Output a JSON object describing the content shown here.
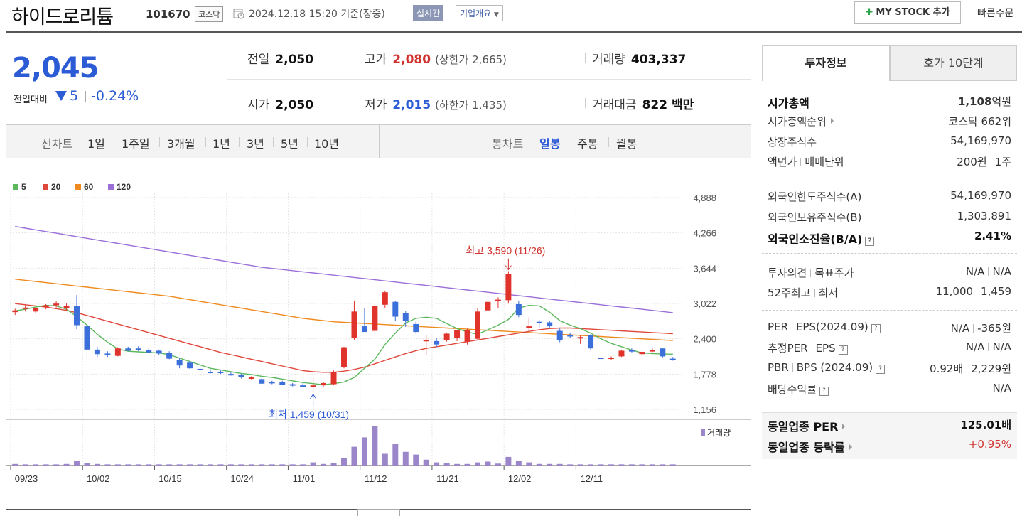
{
  "header": {
    "stock_name": "하이드로리튬",
    "stock_code": "101670",
    "market": "코스닥",
    "date": "2024.12.18 15:20 기준(장중)",
    "realtime_badge": "실시간",
    "company_overview": "기업개요",
    "my_stock_button": "MY STOCK 추가",
    "quick_order": "빠른주문"
  },
  "price": {
    "current": "2,045",
    "change_label": "전일대비",
    "change": "5",
    "change_pct": "-0.24%",
    "direction_color": "#2c5bd6"
  },
  "quote": {
    "prev_close_label": "전일",
    "prev_close": "2,050",
    "high_label": "고가",
    "high": "2,080",
    "upper_limit": "(상한가 2,665)",
    "volume_label": "거래량",
    "volume": "403,337",
    "open_label": "시가",
    "open": "2,050",
    "low_label": "저가",
    "low": "2,015",
    "lower_limit": "(하한가 1,435)",
    "amount_label": "거래대금",
    "amount": "822 백만"
  },
  "period_bar": {
    "line_chart_label": "선차트",
    "line_periods": [
      "1일",
      "1주일",
      "3개월",
      "1년",
      "3년",
      "5년",
      "10년"
    ],
    "candle_chart_label": "봉차트",
    "candle_periods": [
      "일봉",
      "주봉",
      "월봉"
    ],
    "candle_selected": "일봉"
  },
  "chart_data": {
    "type": "candlestick",
    "legend": [
      {
        "name": "5",
        "color": "#5cb85c"
      },
      {
        "name": "20",
        "color": "#e0473c"
      },
      {
        "name": "60",
        "color": "#ef8a1e"
      },
      {
        "name": "120",
        "color": "#9b6fd8"
      }
    ],
    "y_ticks": [
      "4,888",
      "4,266",
      "3,644",
      "3,022",
      "2,400",
      "1,778",
      "1,156"
    ],
    "y_range": [
      1156,
      4888
    ],
    "x_ticks": [
      {
        "label": "09/23",
        "index": 0
      },
      {
        "label": "10/02",
        "index": 7
      },
      {
        "label": "10/15",
        "index": 14
      },
      {
        "label": "10/24",
        "index": 21
      },
      {
        "label": "11/01",
        "index": 27
      },
      {
        "label": "11/12",
        "index": 34
      },
      {
        "label": "11/21",
        "index": 41
      },
      {
        "label": "12/02",
        "index": 48
      },
      {
        "label": "12/11",
        "index": 55
      }
    ],
    "high_annotation": "최고 3,590 (11/26)",
    "low_annotation": "최저 1,459 (10/31)",
    "volume_label": "거래량",
    "candles": [
      {
        "o": 2870,
        "h": 2930,
        "l": 2820,
        "c": 2900
      },
      {
        "o": 2930,
        "h": 2990,
        "l": 2880,
        "c": 2950
      },
      {
        "o": 2880,
        "h": 2960,
        "l": 2850,
        "c": 2940
      },
      {
        "o": 2960,
        "h": 3010,
        "l": 2920,
        "c": 2990
      },
      {
        "o": 2990,
        "h": 3060,
        "l": 2950,
        "c": 3020
      },
      {
        "o": 2940,
        "h": 3020,
        "l": 2900,
        "c": 2980
      },
      {
        "o": 2980,
        "h": 3170,
        "l": 2570,
        "c": 2640
      },
      {
        "o": 2620,
        "h": 2640,
        "l": 2030,
        "c": 2210
      },
      {
        "o": 2210,
        "h": 2260,
        "l": 2080,
        "c": 2130
      },
      {
        "o": 2140,
        "h": 2180,
        "l": 2080,
        "c": 2120
      },
      {
        "o": 2100,
        "h": 2250,
        "l": 2090,
        "c": 2230
      },
      {
        "o": 2230,
        "h": 2260,
        "l": 2180,
        "c": 2190
      },
      {
        "o": 2230,
        "h": 2270,
        "l": 2180,
        "c": 2200
      },
      {
        "o": 2200,
        "h": 2230,
        "l": 2150,
        "c": 2160
      },
      {
        "o": 2190,
        "h": 2210,
        "l": 2120,
        "c": 2140
      },
      {
        "o": 2150,
        "h": 2180,
        "l": 2040,
        "c": 2050
      },
      {
        "o": 2030,
        "h": 2060,
        "l": 1880,
        "c": 1930
      },
      {
        "o": 1980,
        "h": 2010,
        "l": 1870,
        "c": 1880
      },
      {
        "o": 1870,
        "h": 1890,
        "l": 1820,
        "c": 1860
      },
      {
        "o": 1820,
        "h": 1860,
        "l": 1790,
        "c": 1800
      },
      {
        "o": 1820,
        "h": 1840,
        "l": 1780,
        "c": 1800
      },
      {
        "o": 1780,
        "h": 1820,
        "l": 1750,
        "c": 1770
      },
      {
        "o": 1760,
        "h": 1780,
        "l": 1700,
        "c": 1720
      },
      {
        "o": 1710,
        "h": 1740,
        "l": 1680,
        "c": 1720
      },
      {
        "o": 1690,
        "h": 1710,
        "l": 1600,
        "c": 1610
      },
      {
        "o": 1640,
        "h": 1660,
        "l": 1600,
        "c": 1620
      },
      {
        "o": 1640,
        "h": 1660,
        "l": 1580,
        "c": 1590
      },
      {
        "o": 1600,
        "h": 1620,
        "l": 1560,
        "c": 1580
      },
      {
        "o": 1580,
        "h": 1620,
        "l": 1560,
        "c": 1560
      },
      {
        "o": 1560,
        "h": 1720,
        "l": 1459,
        "c": 1580
      },
      {
        "o": 1580,
        "h": 1640,
        "l": 1560,
        "c": 1620
      },
      {
        "o": 1600,
        "h": 1840,
        "l": 1580,
        "c": 1820
      },
      {
        "o": 1900,
        "h": 2260,
        "l": 1880,
        "c": 2250
      },
      {
        "o": 2420,
        "h": 3060,
        "l": 2380,
        "c": 2880
      },
      {
        "o": 2620,
        "h": 2940,
        "l": 2550,
        "c": 2520
      },
      {
        "o": 2540,
        "h": 3010,
        "l": 2480,
        "c": 2980
      },
      {
        "o": 3000,
        "h": 3250,
        "l": 2940,
        "c": 3220
      },
      {
        "o": 3050,
        "h": 3060,
        "l": 2720,
        "c": 2790
      },
      {
        "o": 2850,
        "h": 2890,
        "l": 2610,
        "c": 2710
      },
      {
        "o": 2660,
        "h": 2700,
        "l": 2490,
        "c": 2520
      },
      {
        "o": 2380,
        "h": 2460,
        "l": 2120,
        "c": 2380
      },
      {
        "o": 2360,
        "h": 2410,
        "l": 2250,
        "c": 2300
      },
      {
        "o": 2380,
        "h": 2510,
        "l": 2350,
        "c": 2490
      },
      {
        "o": 2410,
        "h": 2560,
        "l": 2360,
        "c": 2550
      },
      {
        "o": 2350,
        "h": 2580,
        "l": 2300,
        "c": 2550
      },
      {
        "o": 2400,
        "h": 2940,
        "l": 2370,
        "c": 2880
      },
      {
        "o": 2900,
        "h": 3240,
        "l": 2840,
        "c": 3050
      },
      {
        "o": 3060,
        "h": 3130,
        "l": 2940,
        "c": 3090
      },
      {
        "o": 3080,
        "h": 3590,
        "l": 3020,
        "c": 3540
      },
      {
        "o": 3010,
        "h": 3070,
        "l": 2780,
        "c": 2820
      },
      {
        "o": 2610,
        "h": 2780,
        "l": 2540,
        "c": 2620
      },
      {
        "o": 2700,
        "h": 2730,
        "l": 2600,
        "c": 2680
      },
      {
        "o": 2690,
        "h": 2720,
        "l": 2590,
        "c": 2620
      },
      {
        "o": 2540,
        "h": 2580,
        "l": 2340,
        "c": 2380
      },
      {
        "o": 2470,
        "h": 2510,
        "l": 2420,
        "c": 2440
      },
      {
        "o": 2420,
        "h": 2460,
        "l": 2310,
        "c": 2430
      },
      {
        "o": 2460,
        "h": 2480,
        "l": 2200,
        "c": 2230
      },
      {
        "o": 2070,
        "h": 2120,
        "l": 2020,
        "c": 2060
      },
      {
        "o": 2050,
        "h": 2090,
        "l": 2030,
        "c": 2070
      },
      {
        "o": 2090,
        "h": 2210,
        "l": 2080,
        "c": 2190
      },
      {
        "o": 2200,
        "h": 2230,
        "l": 2160,
        "c": 2180
      },
      {
        "o": 2130,
        "h": 2190,
        "l": 2100,
        "c": 2170
      },
      {
        "o": 2200,
        "h": 2230,
        "l": 2160,
        "c": 2200
      },
      {
        "o": 2230,
        "h": 2240,
        "l": 2070,
        "c": 2090
      },
      {
        "o": 2050,
        "h": 2080,
        "l": 2015,
        "c": 2045
      }
    ],
    "ma5": [
      2890,
      2920,
      2960,
      2990,
      2980,
      2920,
      2790,
      2640,
      2480,
      2340,
      2220,
      2180,
      2170,
      2160,
      2150,
      2120,
      2060,
      2000,
      1940,
      1880,
      1850,
      1820,
      1790,
      1770,
      1740,
      1720,
      1690,
      1660,
      1630,
      1610,
      1590,
      1610,
      1640,
      1720,
      1880,
      2040,
      2300,
      2500,
      2680,
      2760,
      2780,
      2760,
      2670,
      2580,
      2520,
      2480,
      2560,
      2640,
      2740,
      2940,
      2990,
      2980,
      2870,
      2720,
      2640,
      2580,
      2500,
      2400,
      2320,
      2260,
      2200,
      2150,
      2140,
      2130,
      2130
    ],
    "ma20": [
      3020,
      3000,
      2980,
      2960,
      2930,
      2900,
      2860,
      2810,
      2760,
      2710,
      2660,
      2610,
      2560,
      2510,
      2460,
      2410,
      2360,
      2310,
      2260,
      2210,
      2160,
      2120,
      2080,
      2040,
      2000,
      1960,
      1920,
      1880,
      1840,
      1820,
      1810,
      1810,
      1830,
      1860,
      1900,
      1960,
      2020,
      2080,
      2140,
      2190,
      2230,
      2260,
      2290,
      2320,
      2350,
      2380,
      2410,
      2440,
      2470,
      2500,
      2530,
      2560,
      2580,
      2590,
      2590,
      2580,
      2570,
      2560,
      2550,
      2540,
      2530,
      2520,
      2510,
      2500,
      2490
    ],
    "ma60": [
      3450,
      3430,
      3410,
      3390,
      3370,
      3350,
      3330,
      3310,
      3290,
      3270,
      3250,
      3230,
      3210,
      3190,
      3170,
      3150,
      3120,
      3090,
      3060,
      3030,
      3000,
      2970,
      2940,
      2910,
      2880,
      2850,
      2820,
      2790,
      2760,
      2740,
      2720,
      2700,
      2690,
      2680,
      2670,
      2660,
      2650,
      2640,
      2630,
      2620,
      2610,
      2600,
      2590,
      2580,
      2570,
      2560,
      2550,
      2540,
      2530,
      2520,
      2510,
      2500,
      2490,
      2480,
      2470,
      2460,
      2450,
      2440,
      2430,
      2420,
      2410,
      2400,
      2390,
      2380,
      2370
    ],
    "ma120": [
      4380,
      4350,
      4320,
      4290,
      4260,
      4230,
      4200,
      4170,
      4140,
      4110,
      4080,
      4050,
      4020,
      3990,
      3960,
      3930,
      3900,
      3870,
      3840,
      3810,
      3780,
      3750,
      3720,
      3690,
      3660,
      3640,
      3620,
      3600,
      3580,
      3560,
      3540,
      3520,
      3500,
      3480,
      3460,
      3440,
      3420,
      3400,
      3380,
      3360,
      3340,
      3320,
      3300,
      3280,
      3260,
      3240,
      3220,
      3200,
      3180,
      3160,
      3140,
      3120,
      3100,
      3080,
      3060,
      3040,
      3020,
      3000,
      2980,
      2960,
      2940,
      2920,
      2900,
      2880,
      2860
    ],
    "volume": [
      4,
      3,
      3,
      3,
      3,
      4,
      12,
      6,
      4,
      3,
      3,
      3,
      3,
      3,
      3,
      3,
      3,
      3,
      3,
      3,
      3,
      3,
      3,
      3,
      3,
      3,
      3,
      3,
      3,
      8,
      4,
      6,
      20,
      48,
      72,
      100,
      30,
      55,
      35,
      28,
      15,
      8,
      6,
      4,
      4,
      8,
      10,
      5,
      22,
      12,
      8,
      4,
      4,
      4,
      3,
      3,
      3,
      3,
      3,
      3,
      3,
      3,
      3,
      3,
      3
    ]
  },
  "investment_info": {
    "tab_active": "투자정보",
    "tab_inactive": "호가 10단계",
    "market_cap_label": "시가총액",
    "market_cap_value": "1,108",
    "market_cap_unit": "억원",
    "market_cap_rank_label": "시가총액순위",
    "market_cap_rank": "코스닥 662위",
    "listed_shares_label": "상장주식수",
    "listed_shares": "54,169,970",
    "face_value_label": "액면가",
    "trade_unit_label": "매매단위",
    "face_value": "200원",
    "trade_unit": "1주",
    "foreign_limit_label": "외국인한도주식수(A)",
    "foreign_limit": "54,169,970",
    "foreign_hold_label": "외국인보유주식수(B)",
    "foreign_hold": "1,303,891",
    "foreign_ratio_label": "외국인소진율(B/A)",
    "foreign_ratio": "2.41%",
    "opinion_label": "투자의견",
    "target_label": "목표주가",
    "opinion": "N/A",
    "target": "N/A",
    "high52_label": "52주최고",
    "low52_label": "최저",
    "high52": "11,000",
    "low52": "1,459",
    "per_label": "PER",
    "eps_label": "EPS(2024.09)",
    "per": "N/A",
    "eps": "-365원",
    "est_per_label": "추정PER",
    "est_eps_label": "EPS",
    "est_per": "N/A",
    "est_eps": "N/A",
    "pbr_label": "PBR",
    "bps_label": "BPS (2024.09)",
    "pbr": "0.92배",
    "bps": "2,229원",
    "dividend_label": "배당수익률",
    "dividend": "N/A",
    "industry_per_label": "동일업종 PER",
    "industry_per": "125.01배",
    "industry_chg_label": "동일업종 등락률",
    "industry_chg": "+0.95%"
  }
}
